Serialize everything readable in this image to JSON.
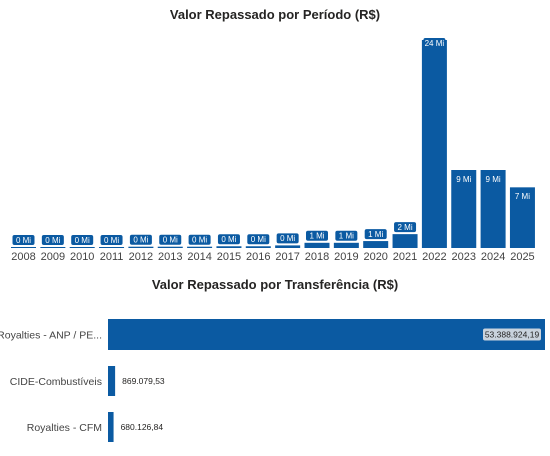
{
  "colors": {
    "bar": "#0b5aa2",
    "label_bg": "#0b5aa2",
    "highlight_label_bg": "#c9d3dd"
  },
  "chart_data": [
    {
      "type": "bar",
      "title": "Valor Repassado por Período (R$)",
      "categories": [
        "2008",
        "2009",
        "2010",
        "2011",
        "2012",
        "2013",
        "2014",
        "2015",
        "2016",
        "2017",
        "2018",
        "2019",
        "2020",
        "2021",
        "2022",
        "2023",
        "2024",
        "2025"
      ],
      "values": [
        0.05,
        0.1,
        0.1,
        0.1,
        0.15,
        0.15,
        0.15,
        0.2,
        0.2,
        0.3,
        0.6,
        0.6,
        0.8,
        1.6,
        24,
        9,
        9,
        7
      ],
      "data_labels": [
        "0 Mi",
        "0 Mi",
        "0 Mi",
        "0 Mi",
        "0 Mi",
        "0 Mi",
        "0 Mi",
        "0 Mi",
        "0 Mi",
        "0 Mi",
        "1 Mi",
        "1 Mi",
        "1 Mi",
        "2 Mi",
        "24 Mi",
        "9 Mi",
        "9 Mi",
        "7 Mi"
      ],
      "ylim": [
        0,
        24
      ],
      "grid": false
    },
    {
      "type": "bar",
      "orientation": "horizontal",
      "title": "Valor Repassado por Transferência (R$)",
      "categories": [
        "Royalties - ANP / PE...",
        "CIDE-Combustíveis",
        "Royalties - CFM"
      ],
      "values": [
        53388924.19,
        869079.53,
        680126.84
      ],
      "data_labels": [
        "53.388.924,19",
        "869.079,53",
        "680.126,84"
      ],
      "xlim": [
        0,
        53388924.19
      ],
      "grid": false
    }
  ]
}
